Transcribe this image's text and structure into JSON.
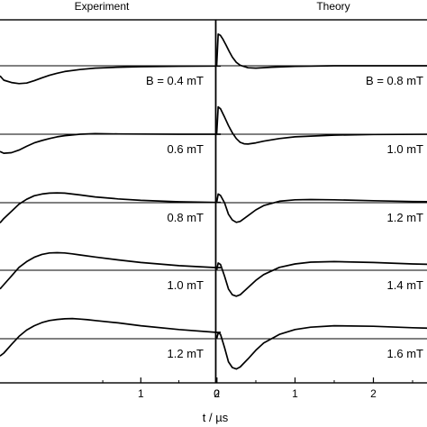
{
  "chart_data": [
    {
      "type": "line",
      "title": "Experiment",
      "xlabel": "t / µs",
      "x_ticks": [
        1,
        2
      ],
      "xlim": [
        -0.85,
        2.05
      ],
      "y_ticks": [],
      "traces": [
        {
          "label": "B = 0.4 mT",
          "x": [
            -0.85,
            -0.8,
            -0.7,
            -0.6,
            -0.5,
            -0.4,
            -0.3,
            -0.2,
            -0.1,
            0,
            0.2,
            0.4,
            0.7,
            1,
            1.5,
            2,
            2.05
          ],
          "y": [
            -0.35,
            -0.5,
            -0.58,
            -0.62,
            -0.6,
            -0.52,
            -0.42,
            -0.33,
            -0.26,
            -0.2,
            -0.13,
            -0.08,
            -0.05,
            -0.03,
            -0.015,
            -0.01,
            -0.01
          ]
        },
        {
          "label": "0.6 mT",
          "x": [
            -0.85,
            -0.8,
            -0.7,
            -0.6,
            -0.5,
            -0.4,
            -0.3,
            -0.2,
            -0.1,
            0,
            0.2,
            0.4,
            0.7,
            1,
            1.5,
            2,
            2.05
          ],
          "y": [
            -0.6,
            -0.66,
            -0.64,
            -0.55,
            -0.42,
            -0.3,
            -0.22,
            -0.15,
            -0.09,
            -0.05,
            0,
            0.02,
            0.01,
            0.005,
            0,
            0,
            0
          ]
        },
        {
          "label": "0.8 mT",
          "x": [
            -0.85,
            -0.8,
            -0.7,
            -0.6,
            -0.5,
            -0.4,
            -0.3,
            -0.2,
            -0.1,
            0,
            0.1,
            0.2,
            0.4,
            0.7,
            1,
            1.5,
            2,
            2.05
          ],
          "y": [
            -0.7,
            -0.55,
            -0.3,
            -0.05,
            0.12,
            0.24,
            0.3,
            0.33,
            0.34,
            0.33,
            0.3,
            0.27,
            0.2,
            0.13,
            0.08,
            0.03,
            0.01,
            0.01
          ]
        },
        {
          "label": "1.0 mT",
          "x": [
            -0.85,
            -0.8,
            -0.7,
            -0.6,
            -0.5,
            -0.4,
            -0.3,
            -0.2,
            -0.1,
            0,
            0.1,
            0.2,
            0.4,
            0.7,
            1,
            1.5,
            2,
            2.05
          ],
          "y": [
            -0.65,
            -0.5,
            -0.2,
            0.1,
            0.3,
            0.45,
            0.55,
            0.6,
            0.61,
            0.6,
            0.57,
            0.53,
            0.46,
            0.36,
            0.27,
            0.16,
            0.09,
            0.09
          ]
        },
        {
          "label": "1.2 mT",
          "x": [
            -0.85,
            -0.8,
            -0.7,
            -0.6,
            -0.5,
            -0.4,
            -0.3,
            -0.2,
            -0.1,
            0,
            0.1,
            0.2,
            0.3,
            0.4,
            0.7,
            1,
            1.5,
            2,
            2.05
          ],
          "y": [
            -0.6,
            -0.5,
            -0.2,
            0.08,
            0.3,
            0.45,
            0.56,
            0.63,
            0.67,
            0.69,
            0.7,
            0.68,
            0.66,
            0.63,
            0.55,
            0.45,
            0.32,
            0.22,
            0.22
          ]
        }
      ]
    },
    {
      "type": "line",
      "title": "Theory",
      "xlabel": "",
      "x_ticks": [
        0,
        1,
        2
      ],
      "xlim": [
        0,
        2.8
      ],
      "y_ticks": [],
      "traces": [
        {
          "label": "B = 0.8 mT",
          "x": [
            0,
            0.02,
            0.05,
            0.08,
            0.12,
            0.16,
            0.2,
            0.25,
            0.3,
            0.4,
            0.5,
            0.7,
            1,
            1.5,
            2,
            2.8
          ],
          "y": [
            0,
            1.1,
            1.05,
            0.92,
            0.72,
            0.5,
            0.3,
            0.12,
            0.02,
            -0.07,
            -0.08,
            -0.05,
            -0.02,
            0,
            0,
            0
          ]
        },
        {
          "label": "1.0 mT",
          "x": [
            0,
            0.02,
            0.05,
            0.1,
            0.15,
            0.2,
            0.25,
            0.3,
            0.35,
            0.4,
            0.5,
            0.6,
            0.8,
            1,
            1.5,
            2,
            2.8
          ],
          "y": [
            0,
            0.95,
            0.88,
            0.6,
            0.3,
            0.05,
            -0.15,
            -0.28,
            -0.33,
            -0.34,
            -0.3,
            -0.24,
            -0.15,
            -0.09,
            -0.03,
            -0.01,
            0
          ]
        },
        {
          "label": "1.2 mT",
          "x": [
            0,
            0.02,
            0.05,
            0.1,
            0.15,
            0.2,
            0.25,
            0.3,
            0.4,
            0.5,
            0.6,
            0.8,
            1,
            1.2,
            1.5,
            2,
            2.5,
            2.8
          ],
          "y": [
            0,
            0.3,
            0.25,
            0,
            -0.4,
            -0.6,
            -0.68,
            -0.65,
            -0.45,
            -0.25,
            -0.1,
            0.05,
            0.1,
            0.11,
            0.1,
            0.07,
            0.04,
            0.03
          ]
        },
        {
          "label": "1.4 mT",
          "x": [
            0,
            0.02,
            0.05,
            0.1,
            0.15,
            0.2,
            0.25,
            0.3,
            0.4,
            0.5,
            0.6,
            0.8,
            1,
            1.2,
            1.5,
            2,
            2.5,
            2.8
          ],
          "y": [
            0,
            0.25,
            0.2,
            -0.2,
            -0.65,
            -0.85,
            -0.9,
            -0.85,
            -0.6,
            -0.35,
            -0.15,
            0.1,
            0.22,
            0.28,
            0.3,
            0.27,
            0.22,
            0.2
          ]
        },
        {
          "label": "1.6 mT",
          "x": [
            0,
            0.02,
            0.05,
            0.1,
            0.15,
            0.2,
            0.25,
            0.3,
            0.4,
            0.5,
            0.6,
            0.8,
            1,
            1.2,
            1.5,
            2,
            2.5,
            2.8
          ],
          "y": [
            0,
            0.2,
            0.15,
            -0.3,
            -0.8,
            -1.0,
            -1.05,
            -0.98,
            -0.7,
            -0.4,
            -0.15,
            0.15,
            0.32,
            0.4,
            0.45,
            0.43,
            0.38,
            0.36
          ]
        }
      ]
    }
  ]
}
